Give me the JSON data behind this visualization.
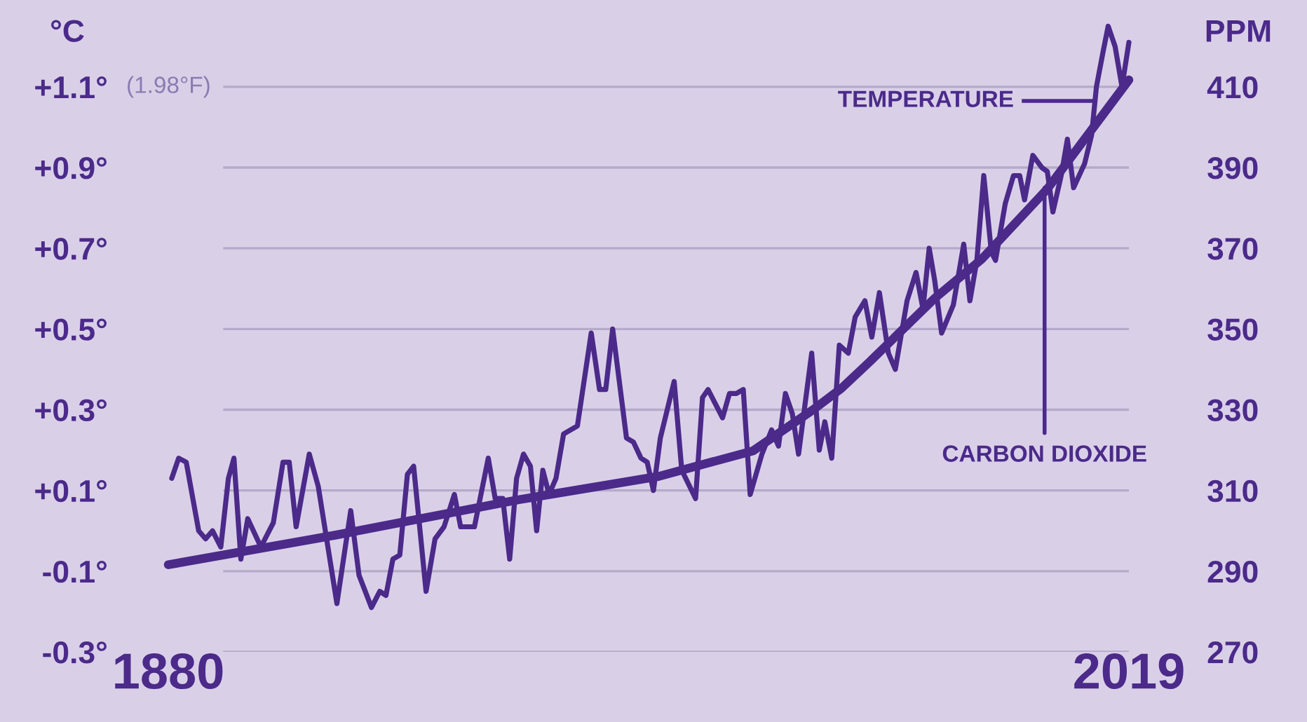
{
  "chart_data": {
    "type": "line",
    "xlim": [
      1880,
      2019
    ],
    "xticks": [
      1880,
      2019
    ],
    "ylim": [
      -0.3,
      1.315
    ],
    "yticks": [
      {
        "value": -0.3,
        "label": "-0.3°"
      },
      {
        "value": -0.1,
        "label": "-0.1°"
      },
      {
        "value": 0.1,
        "label": "+0.1°"
      },
      {
        "value": 0.3,
        "label": "+0.3°"
      },
      {
        "value": 0.5,
        "label": "+0.5°"
      },
      {
        "value": 0.7,
        "label": "+0.7°"
      },
      {
        "value": 0.9,
        "label": "+0.9°"
      },
      {
        "value": 1.1,
        "label": "+1.1°"
      }
    ],
    "y2lim": [
      270,
      431.5
    ],
    "y2ticks": [
      270,
      290,
      310,
      330,
      350,
      370,
      390,
      410
    ],
    "ylabel": "°C",
    "y2label": "PPM",
    "grid": "y",
    "marker": "none",
    "line_style": "solid",
    "annotations": [
      "(1.98°F)",
      "TEMPERATURE",
      {
        "text": "CARBON DIOXIDE",
        "x": 2006.8,
        "y": 0.85
      }
    ],
    "series": [
      {
        "color": "#4b2a8a",
        "x": [
          1880.5,
          1881.5,
          1882.6,
          1884.4,
          1885.4,
          1886.4,
          1887.6,
          1888.7,
          1889.5,
          1890.5,
          1891.5,
          1893.4,
          1895.2,
          1896.6,
          1897.5,
          1898.5,
          1900.4,
          1901.7,
          1904.4,
          1906.4,
          1907.6,
          1909.4,
          1910.6,
          1911.5,
          1912.5,
          1913.5,
          1914.6,
          1915.5,
          1917.3,
          1918.6,
          1919.9,
          1921.4,
          1922.3,
          1924.3,
          1926.3,
          1927.3,
          1928.4,
          1929.4,
          1930.4,
          1931.4,
          1932.4,
          1933.3,
          1934.2,
          1935.1,
          1936.1,
          1937.2,
          1939.2,
          1941.2,
          1942.4,
          1943.3,
          1944.3,
          1946.3,
          1947.3,
          1948.4,
          1949.3,
          1950.2,
          1951.2,
          1953.2,
          1954.3,
          1956.3,
          1957.3,
          1958.1,
          1960.2,
          1961.2,
          1962.2,
          1963.2,
          1964.2,
          1965.9,
          1967.3,
          1968.3,
          1969.3,
          1970.3,
          1971.2,
          1973.1,
          1974.2,
          1975.0,
          1976.0,
          1977.1,
          1978.4,
          1979.4,
          1980.8,
          1981.8,
          1982.9,
          1984.2,
          1985.2,
          1986.9,
          1988.2,
          1989.2,
          1990.1,
          1990.9,
          1991.9,
          1993.6,
          1995.1,
          1996.0,
          1997.0,
          1998.0,
          1999.1,
          1999.7,
          2001.1,
          2002.3,
          2003.2,
          2003.9,
          2005.1,
          2006.4,
          2007.2,
          2008.0,
          2009.2,
          2010.1,
          2011.0,
          2012.6,
          2013.6,
          2014.3,
          2015.3,
          2016.0,
          2017.0,
          2018.0,
          2019.0
        ],
        "values": [
          0.13,
          0.18,
          0.17,
          0.0,
          -0.02,
          0.0,
          -0.04,
          0.13,
          0.18,
          -0.07,
          0.03,
          -0.04,
          0.02,
          0.17,
          0.17,
          0.01,
          0.19,
          0.11,
          -0.18,
          0.05,
          -0.11,
          -0.19,
          -0.15,
          -0.16,
          -0.07,
          -0.06,
          0.14,
          0.16,
          -0.15,
          -0.02,
          0.01,
          0.09,
          0.01,
          0.01,
          0.18,
          0.08,
          0.08,
          -0.07,
          0.13,
          0.19,
          0.16,
          0.0,
          0.15,
          0.09,
          0.13,
          0.24,
          0.26,
          0.49,
          0.35,
          0.35,
          0.5,
          0.23,
          0.22,
          0.18,
          0.17,
          0.1,
          0.23,
          0.37,
          0.15,
          0.08,
          0.33,
          0.35,
          0.28,
          0.34,
          0.34,
          0.35,
          0.09,
          0.19,
          0.25,
          0.21,
          0.34,
          0.29,
          0.19,
          0.44,
          0.2,
          0.27,
          0.18,
          0.46,
          0.44,
          0.53,
          0.57,
          0.48,
          0.59,
          0.44,
          0.4,
          0.57,
          0.64,
          0.55,
          0.7,
          0.62,
          0.49,
          0.56,
          0.71,
          0.57,
          0.67,
          0.88,
          0.69,
          0.67,
          0.81,
          0.88,
          0.88,
          0.82,
          0.93,
          0.9,
          0.89,
          0.79,
          0.88,
          0.97,
          0.85,
          0.91,
          0.98,
          1.1,
          1.19,
          1.25,
          1.2,
          1.1,
          1.21
        ]
      },
      {
        "color": "#4b2a8a",
        "axis": "y2",
        "x": [
          1880,
          1904.4,
          1930.7,
          1951.0,
          1964.6,
          1973.3,
          1977.4,
          1981.5,
          1990.9,
          1997.7,
          2007.2,
          2019.0
        ],
        "values": [
          291.6,
          299.0,
          307.7,
          313.5,
          319.8,
          330.0,
          335.3,
          341.9,
          357.6,
          367.3,
          384.7,
          411.7
        ]
      }
    ]
  }
}
